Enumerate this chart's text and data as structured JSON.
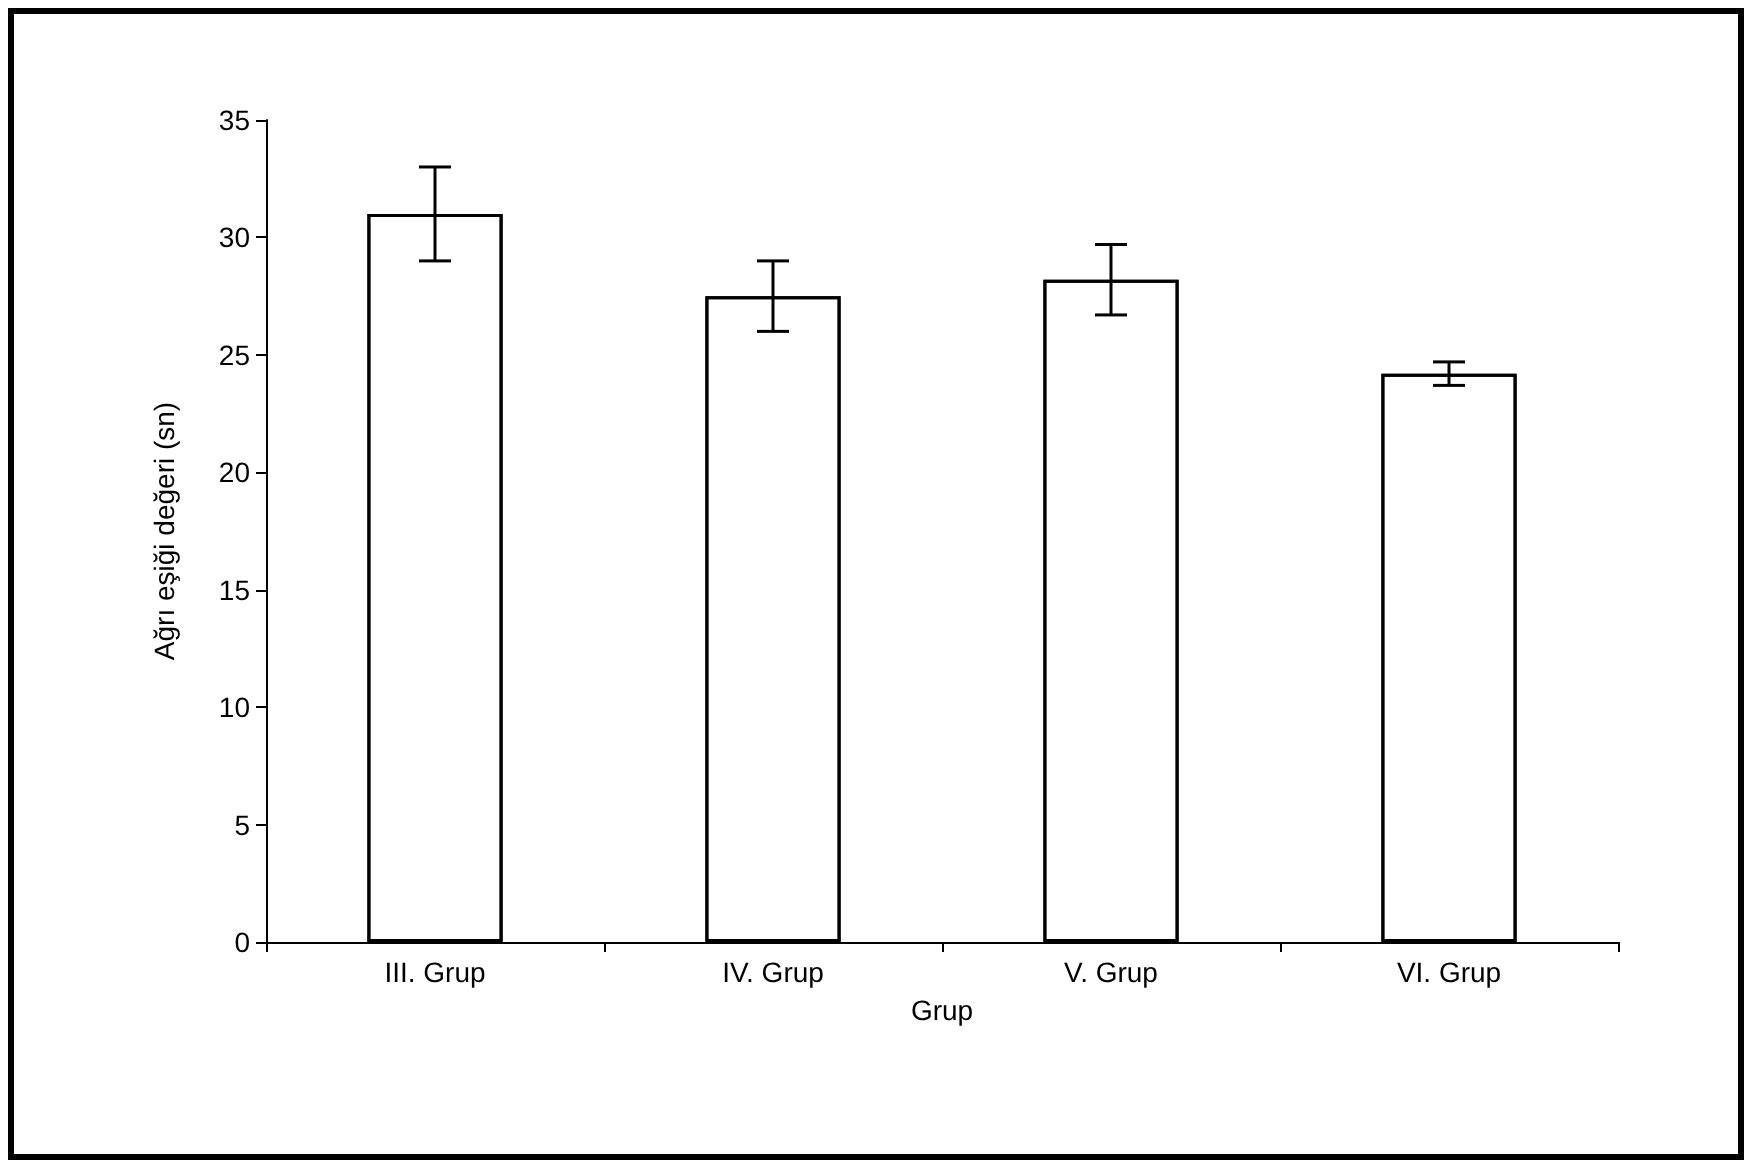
{
  "chart_data": {
    "type": "bar",
    "xlabel": "Grup",
    "ylabel": "Ağrı eşiği değeri (sn)",
    "categories": [
      "III. Grup",
      "IV. Grup",
      "V. Grup",
      "VI. Grup"
    ],
    "values": [
      31.0,
      27.5,
      28.2,
      24.2
    ],
    "errors": [
      2.0,
      1.5,
      1.5,
      0.5
    ],
    "color": "#ffffff",
    "ylim": [
      0,
      35
    ],
    "yticks": [
      0,
      5,
      10,
      15,
      20,
      25,
      30,
      35
    ],
    "grid": false
  }
}
